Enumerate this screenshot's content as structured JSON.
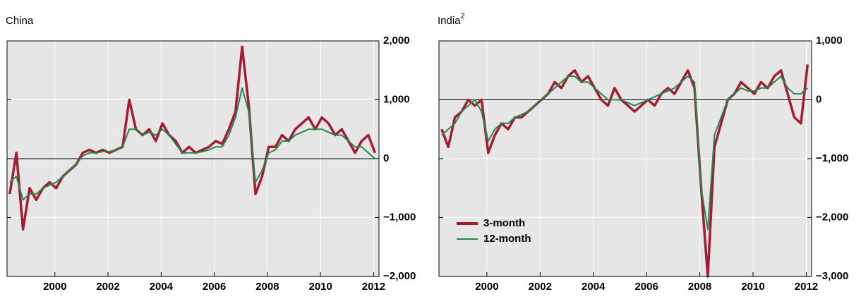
{
  "chart_data": [
    {
      "type": "line",
      "title": "China",
      "x": [
        1998.3,
        1998.55,
        1998.8,
        1999.05,
        1999.3,
        1999.55,
        1999.8,
        2000.05,
        2000.3,
        2000.55,
        2000.8,
        2001.05,
        2001.3,
        2001.55,
        2001.8,
        2002.05,
        2002.3,
        2002.55,
        2002.8,
        2003.05,
        2003.3,
        2003.55,
        2003.8,
        2004.05,
        2004.3,
        2004.55,
        2004.8,
        2005.05,
        2005.3,
        2005.55,
        2005.8,
        2006.05,
        2006.3,
        2006.55,
        2006.8,
        2007.05,
        2007.3,
        2007.55,
        2007.8,
        2008.05,
        2008.3,
        2008.55,
        2008.8,
        2009.05,
        2009.3,
        2009.55,
        2009.8,
        2010.05,
        2010.3,
        2010.55,
        2010.8,
        2011.05,
        2011.3,
        2011.55,
        2011.8,
        2012.05
      ],
      "series": [
        {
          "name": "3-month",
          "color": "#a51c30",
          "values": [
            -600,
            100,
            -1200,
            -500,
            -700,
            -500,
            -400,
            -500,
            -300,
            -200,
            -100,
            100,
            150,
            100,
            150,
            100,
            150,
            200,
            1000,
            500,
            400,
            500,
            300,
            600,
            400,
            300,
            100,
            200,
            100,
            150,
            200,
            300,
            250,
            500,
            800,
            1900,
            900,
            -600,
            -300,
            200,
            200,
            400,
            300,
            500,
            600,
            700,
            500,
            700,
            600,
            400,
            500,
            300,
            100,
            300,
            400,
            100
          ]
        },
        {
          "name": "12-month",
          "color": "#1e8a50",
          "values": [
            -400,
            -300,
            -700,
            -600,
            -600,
            -500,
            -450,
            -400,
            -300,
            -200,
            -100,
            50,
            100,
            100,
            120,
            120,
            150,
            200,
            500,
            500,
            400,
            450,
            400,
            500,
            400,
            250,
            100,
            100,
            100,
            120,
            150,
            200,
            200,
            400,
            700,
            1200,
            800,
            -400,
            -200,
            100,
            150,
            300,
            300,
            400,
            450,
            500,
            500,
            500,
            450,
            400,
            400,
            300,
            200,
            200,
            100,
            0
          ]
        }
      ],
      "xlim": [
        1998.2,
        2012.2
      ],
      "xticks": [
        2000,
        2002,
        2004,
        2006,
        2008,
        2010,
        2012
      ],
      "ylim": [
        -2000,
        2000
      ],
      "yticks": [
        {
          "value": -2000,
          "label": "−2,000"
        },
        {
          "value": -1000,
          "label": "−1,000"
        },
        0,
        {
          "value": 1000,
          "label": "1,000"
        },
        {
          "value": 2000,
          "label": "2,000"
        }
      ],
      "grid": true
    },
    {
      "type": "line",
      "title": "India",
      "title_note": "2",
      "x": [
        1998.3,
        1998.55,
        1998.8,
        1999.05,
        1999.3,
        1999.55,
        1999.8,
        2000.05,
        2000.3,
        2000.55,
        2000.8,
        2001.05,
        2001.3,
        2001.55,
        2001.8,
        2002.05,
        2002.3,
        2002.55,
        2002.8,
        2003.05,
        2003.3,
        2003.55,
        2003.8,
        2004.05,
        2004.3,
        2004.55,
        2004.8,
        2005.05,
        2005.3,
        2005.55,
        2005.8,
        2006.05,
        2006.3,
        2006.55,
        2006.8,
        2007.05,
        2007.3,
        2007.55,
        2007.8,
        2008.05,
        2008.3,
        2008.55,
        2008.8,
        2009.05,
        2009.3,
        2009.55,
        2009.8,
        2010.05,
        2010.3,
        2010.55,
        2010.8,
        2011.05,
        2011.3,
        2011.55,
        2011.8,
        2012.05
      ],
      "series": [
        {
          "name": "3-month",
          "color": "#a51c30",
          "values": [
            -500,
            -800,
            -300,
            -200,
            0,
            -100,
            0,
            -900,
            -600,
            -400,
            -500,
            -300,
            -300,
            -200,
            -100,
            0,
            100,
            300,
            200,
            400,
            500,
            300,
            400,
            200,
            0,
            -100,
            200,
            0,
            -100,
            -200,
            -100,
            0,
            -100,
            100,
            200,
            100,
            300,
            500,
            200,
            -1500,
            -3000,
            -800,
            -400,
            0,
            100,
            300,
            200,
            100,
            300,
            200,
            400,
            500,
            100,
            -300,
            -400,
            600
          ]
        },
        {
          "name": "12-month",
          "color": "#1e8a50",
          "values": [
            -600,
            -500,
            -400,
            -200,
            -100,
            0,
            -200,
            -700,
            -500,
            -400,
            -400,
            -300,
            -250,
            -200,
            -100,
            0,
            100,
            200,
            300,
            400,
            400,
            300,
            300,
            200,
            100,
            0,
            0,
            0,
            -50,
            -100,
            -50,
            0,
            50,
            100,
            150,
            200,
            300,
            400,
            300,
            -1500,
            -2200,
            -600,
            -300,
            0,
            100,
            200,
            150,
            150,
            200,
            200,
            300,
            400,
            200,
            100,
            100,
            200
          ]
        }
      ],
      "xlim": [
        1998.2,
        2012.2
      ],
      "xticks": [
        2000,
        2002,
        2004,
        2006,
        2008,
        2010,
        2012
      ],
      "ylim": [
        -3000,
        1000
      ],
      "yticks": [
        {
          "value": -3000,
          "label": "−3,000"
        },
        {
          "value": -2000,
          "label": "−2,000"
        },
        {
          "value": -1000,
          "label": "−1,000"
        },
        0,
        {
          "value": 1000,
          "label": "1,000"
        }
      ],
      "grid": true,
      "legend": "lower left"
    }
  ]
}
